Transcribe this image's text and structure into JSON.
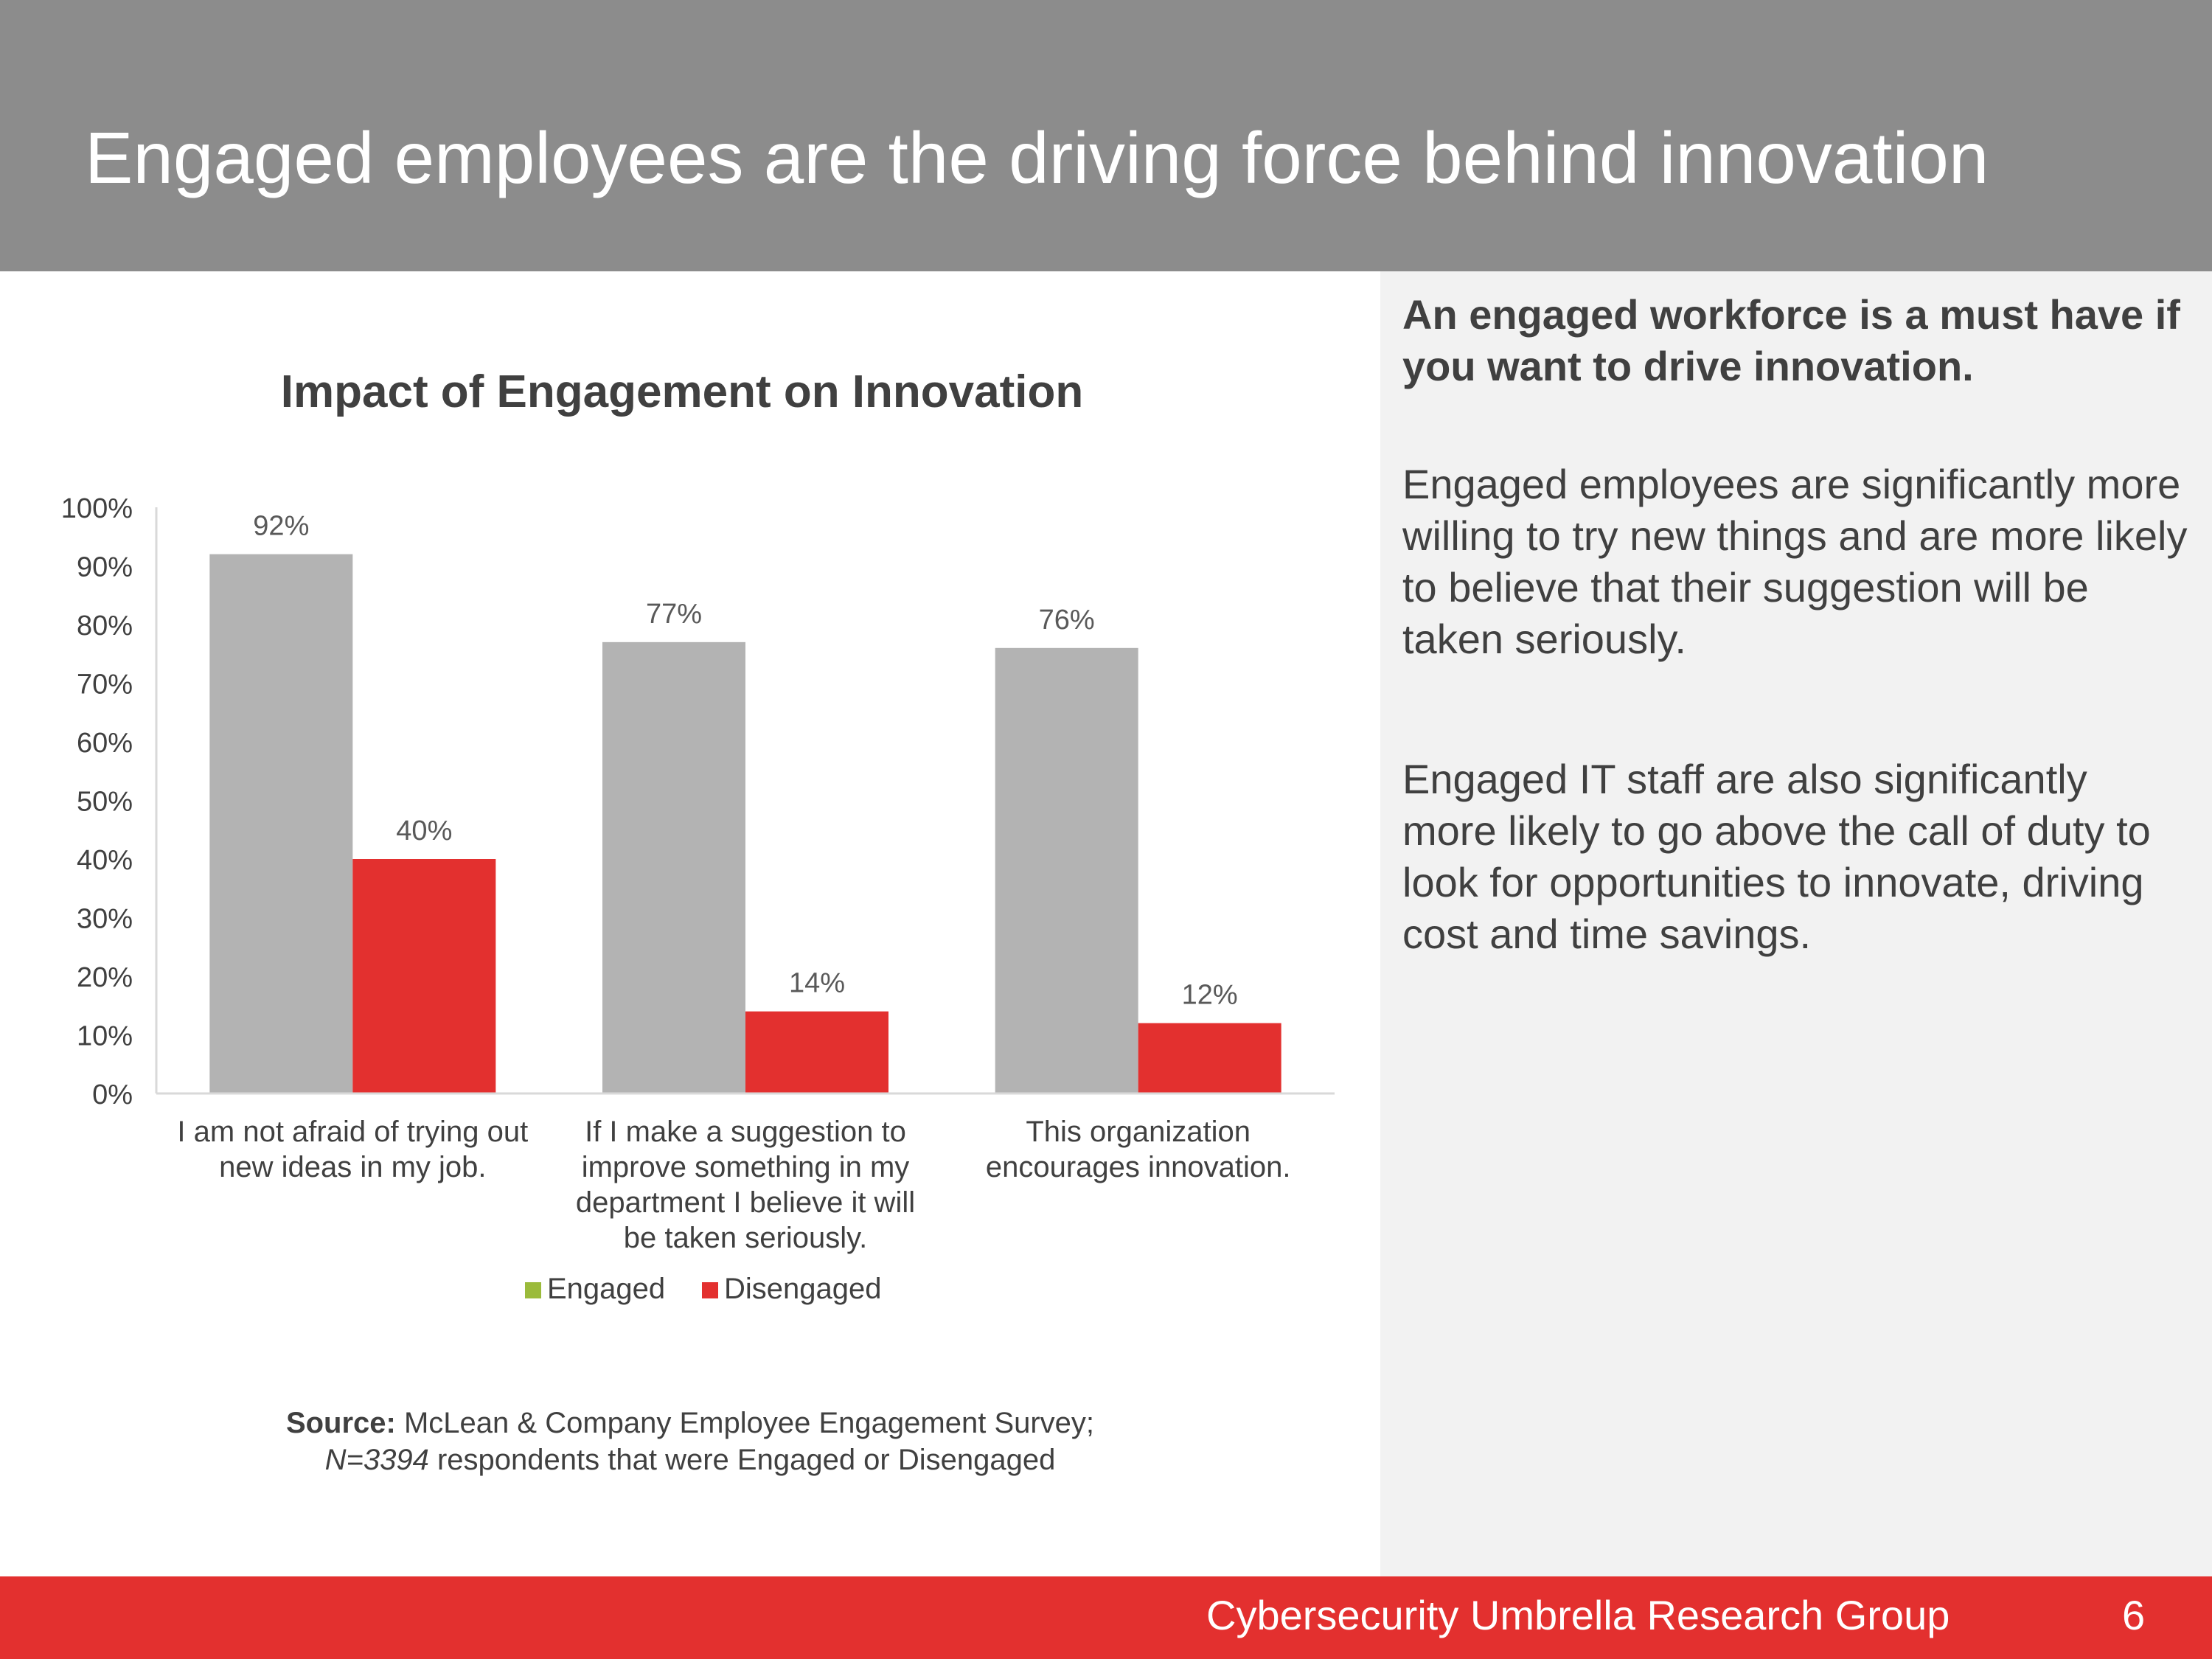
{
  "slide": {
    "title": "Engaged employees are the driving force behind innovation"
  },
  "panel": {
    "heading": "An engaged workforce is a must have if you want to drive innovation.",
    "paragraphs": [
      "Engaged employees are significantly more willing to try new things and are more likely to believe that their suggestion will be taken seriously.",
      "Engaged IT staff are also significantly more likely to go above the call of duty to look for opportunities to innovate, driving cost and time savings."
    ]
  },
  "chart_data": {
    "type": "bar",
    "title": "Impact of Engagement on Innovation",
    "categories": [
      [
        "I am not afraid of trying out",
        "new ideas in my job."
      ],
      [
        "If I make a suggestion to",
        "improve something in my",
        "department I believe it will",
        "be taken seriously."
      ],
      [
        "This organization",
        "encourages innovation."
      ]
    ],
    "series": [
      {
        "name": "Engaged",
        "values": [
          92,
          77,
          76
        ],
        "labels": [
          "92%",
          "77%",
          "76%"
        ],
        "color": "#b3b3b3",
        "legend_color": "#9bbb3b"
      },
      {
        "name": "Disengaged",
        "values": [
          40,
          14,
          12
        ],
        "labels": [
          "40%",
          "14%",
          "12%"
        ],
        "color": "#e3302f",
        "legend_color": "#e3302f"
      }
    ],
    "ylim": [
      0,
      100
    ],
    "yticks": [
      0,
      10,
      20,
      30,
      40,
      50,
      60,
      70,
      80,
      90,
      100
    ],
    "ytick_labels": [
      "0%",
      "10%",
      "20%",
      "30%",
      "40%",
      "50%",
      "60%",
      "70%",
      "80%",
      "90%",
      "100%"
    ],
    "grid": false,
    "legend": "bottom"
  },
  "source": {
    "label": "Source:",
    "text": " McLean & Company Employee Engagement Survey;",
    "n_value": "N=3394",
    "n_text": " respondents that were Engaged or Disengaged"
  },
  "footer": {
    "text": "Cybersecurity Umbrella Research Group",
    "page": "6"
  },
  "colors": {
    "header": "#8c8c8c",
    "accent": "#e3302f",
    "panel": "#f2f2f2",
    "text": "#404040"
  }
}
